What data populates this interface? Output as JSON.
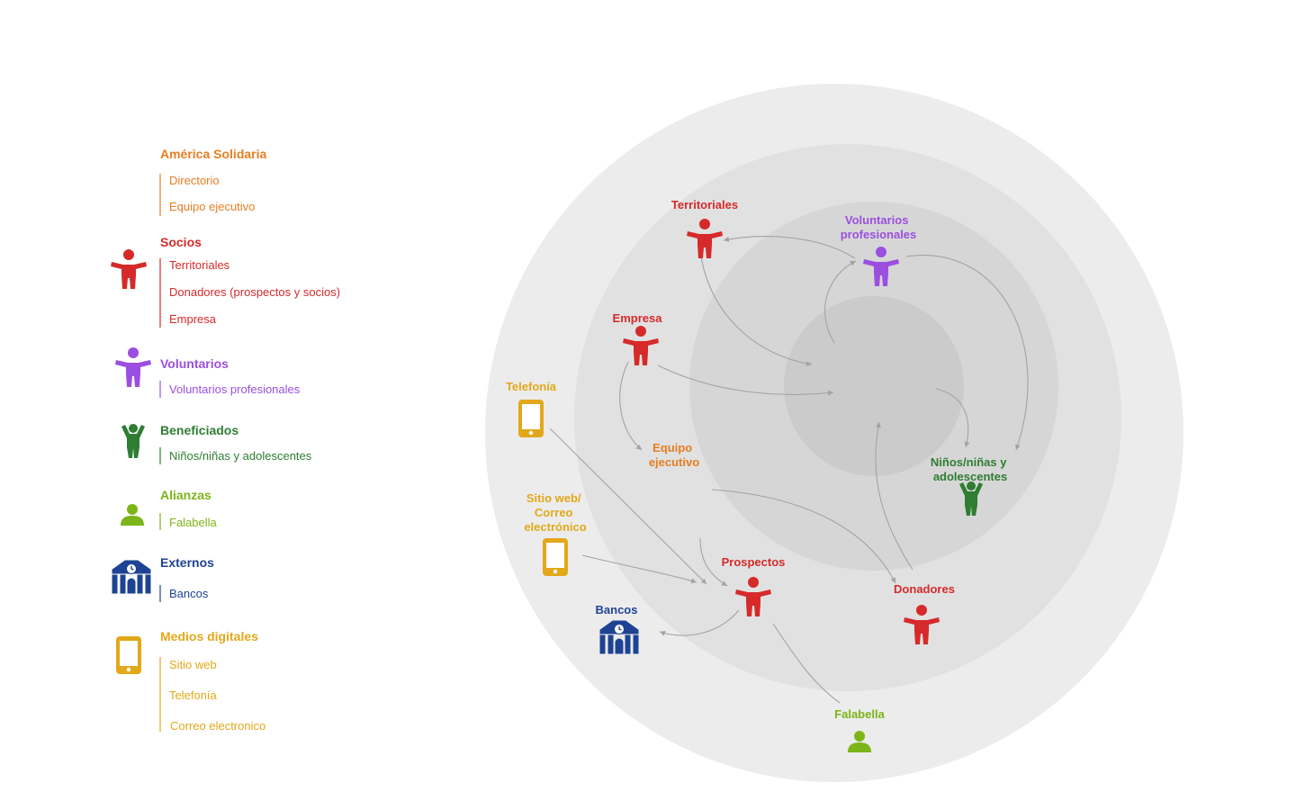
{
  "legend": {
    "america_solidaria": {
      "title": "América Solidaria",
      "items": [
        "Directorio",
        "Equipo ejecutivo"
      ],
      "color": "#e67e22"
    },
    "socios": {
      "title": "Socios",
      "items": [
        "Territoriales",
        "Donadores (prospectos y socios)",
        "Empresa"
      ],
      "color": "#d62a2a",
      "icon": "person-arms-out-icon"
    },
    "voluntarios": {
      "title": "Voluntarios",
      "items": [
        "Voluntarios profesionales"
      ],
      "color": "#9b4fe0",
      "icon": "person-arms-out-icon"
    },
    "beneficiados": {
      "title": "Beneficiados",
      "items": [
        "Niños/niñas y adolescentes"
      ],
      "color": "#2e7d32",
      "icon": "child-arms-up-icon"
    },
    "alianzas": {
      "title": "Alianzas",
      "items": [
        "Falabella"
      ],
      "color": "#7cb518",
      "icon": "user-bust-icon"
    },
    "externos": {
      "title": "Externos",
      "items": [
        "Bancos"
      ],
      "color": "#1e4394",
      "icon": "bank-building-icon"
    },
    "medios_digitales": {
      "title": "Medios digitales",
      "items": [
        "Sitio web",
        "Telefonía",
        "Correo electronico"
      ],
      "color": "#e3a81a",
      "icon": "smartphone-icon"
    }
  },
  "nodes": {
    "territoriales": "Territoriales",
    "voluntarios_profesionales": [
      "Voluntarios",
      "profesionales"
    ],
    "empresa": "Empresa",
    "telefonia": "Telefonía",
    "equipo_ejecutivo": [
      "Equipo",
      "ejecutivo"
    ],
    "ninos": [
      "Niños/niñas y",
      "adolescentes"
    ],
    "sitio_web": [
      "Sitio web/",
      "Correo",
      "electrónico"
    ],
    "prospectos": "Prospectos",
    "donadores": "Donadores",
    "bancos": "Bancos",
    "falabella": "Falabella"
  },
  "colors": {
    "ring_outer": "#ececec",
    "ring_2": "#e1e1e1",
    "ring_3": "#d6d6d6",
    "ring_core": "#cbcbcb",
    "arrow": "#a3a3a3"
  }
}
